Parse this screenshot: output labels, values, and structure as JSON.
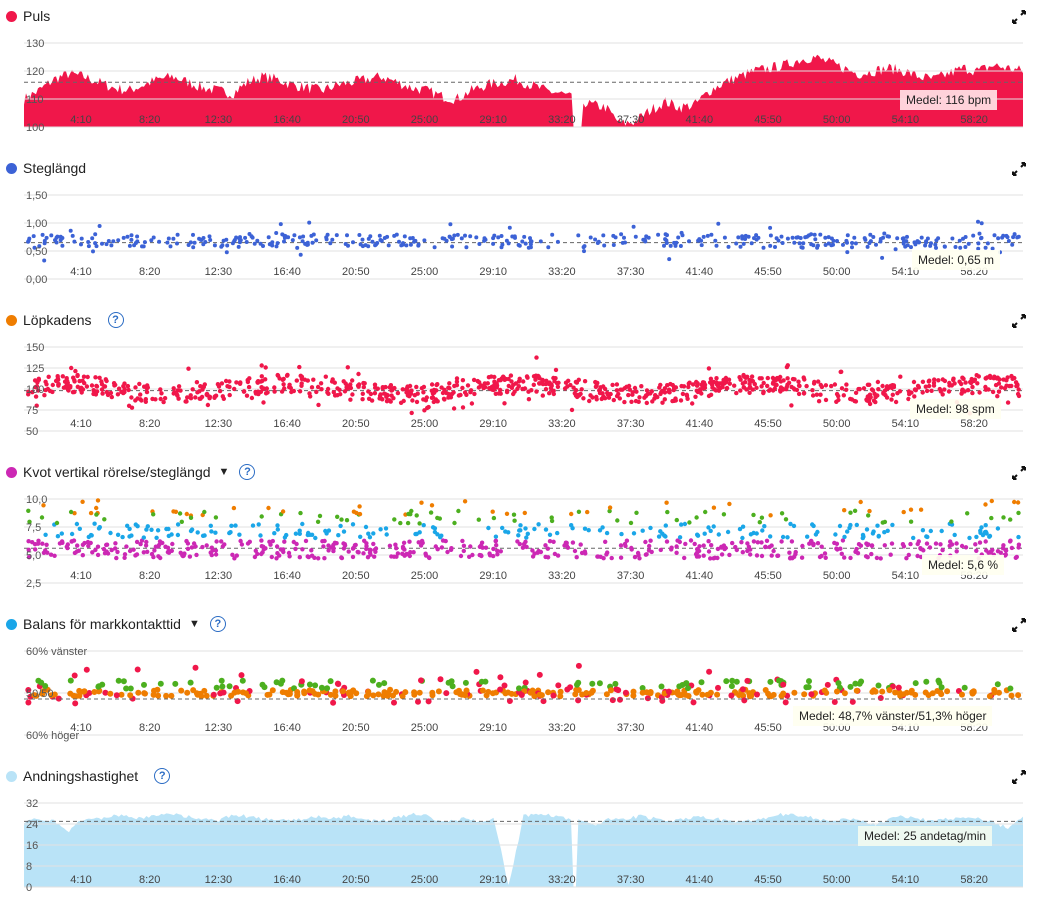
{
  "x_ticks": [
    "4:10",
    "8:20",
    "12:30",
    "16:40",
    "20:50",
    "25:00",
    "29:10",
    "33:20",
    "37:30",
    "41:40",
    "45:50",
    "50:00",
    "54:10",
    "58:20"
  ],
  "colors": {
    "puls": "#f0174a",
    "steg": "#3c62d6",
    "kadens_dot": "#f0174a",
    "kadens_icon": "#ef7d00",
    "kvot_pink": "#cc28b4",
    "kvot_blue": "#1aa6e8",
    "kvot_green": "#4caf1f",
    "kvot_orange": "#ef7d00",
    "kvot_icon": "#cc28b4",
    "balans_red": "#f0174a",
    "balans_orange": "#ef7d00",
    "balans_green": "#4caf1f",
    "balans_icon": "#1aa6e8",
    "andning": "#b9e3f7",
    "andning_icon": "#b9e3f7",
    "help": "#2b6cc4"
  },
  "panels": {
    "puls": {
      "title": "Puls",
      "avg_label": "Medel: 116 bpm",
      "y_ticks": [
        "130",
        "120",
        "110",
        "100"
      ]
    },
    "steg": {
      "title": "Steglängd",
      "avg_label": "Medel: 0,65 m",
      "y_ticks": [
        "1,50",
        "1,00",
        "0,50",
        "0,00"
      ]
    },
    "kadens": {
      "title": "Löpkadens",
      "avg_label": "Medel: 98 spm",
      "y_ticks": [
        "150",
        "125",
        "100",
        "75",
        "50"
      ]
    },
    "kvot": {
      "title": "Kvot vertikal rörelse/steglängd",
      "avg_label": "Medel: 5,6 %",
      "y_ticks": [
        "10,0",
        "7,5",
        "5,0",
        "2,5"
      ]
    },
    "balans": {
      "title": "Balans för markkontakttid",
      "avg_label": "Medel: 48,7% vänster/51,3% höger",
      "y_ticks": [
        "60% vänster",
        "50/50",
        "60% höger"
      ]
    },
    "andning": {
      "title": "Andningshastighet",
      "avg_label": "Medel: 25 andetag/min",
      "y_ticks": [
        "32",
        "24",
        "16",
        "8",
        "0"
      ]
    }
  },
  "chart_data": [
    {
      "type": "area",
      "title": "Puls",
      "ylim": [
        100,
        130
      ],
      "xlim_seconds": [
        0,
        3720
      ],
      "average": 116,
      "unit": "bpm",
      "series": [
        {
          "values": [
            110,
            113,
            117,
            119,
            118,
            116,
            114,
            113,
            115,
            117,
            118,
            116,
            114,
            113,
            112,
            116,
            118,
            117,
            115,
            114,
            113,
            115,
            116,
            117,
            118,
            116,
            114,
            113,
            111,
            110,
            113,
            115,
            116,
            117,
            115,
            113,
            112,
            110,
            108,
            107,
            101,
            102,
            106,
            109,
            107,
            108,
            113,
            116,
            118,
            120,
            121,
            122,
            124,
            125,
            123,
            121,
            119,
            120,
            121,
            120,
            118,
            117,
            119,
            121,
            120,
            122,
            121,
            120
          ]
        }
      ]
    },
    {
      "type": "scatter",
      "title": "Steglängd",
      "ylim": [
        0,
        1.5
      ],
      "average": 0.65,
      "unit": "m",
      "sample_count": 420
    },
    {
      "type": "scatter",
      "title": "Löpkadens",
      "ylim": [
        50,
        150
      ],
      "average": 98,
      "unit": "spm",
      "sample_count": 900
    },
    {
      "type": "scatter",
      "title": "Kvot vertikal rörelse/steglängd",
      "ylim": [
        2.5,
        10
      ],
      "average": 5.6,
      "unit": "%",
      "sample_count": 780
    },
    {
      "type": "scatter",
      "title": "Balans för markkontakttid",
      "average_left": 48.7,
      "average_right": 51.3,
      "unit": "%",
      "sample_count": 420
    },
    {
      "type": "area",
      "title": "Andningshastighet",
      "ylim": [
        0,
        32
      ],
      "average": 25,
      "unit": "andetag/min",
      "series": [
        {
          "values": [
            25,
            26,
            25,
            21,
            26,
            26,
            27,
            27,
            26,
            27,
            28,
            27,
            26,
            25,
            27,
            27,
            26,
            26,
            25,
            26,
            27,
            26,
            27,
            26,
            25,
            26,
            27,
            28,
            26,
            25,
            26,
            25,
            26,
            0,
            27,
            28,
            27,
            26,
            25,
            24,
            26,
            26,
            27,
            26,
            25,
            26,
            27,
            26,
            25,
            25,
            26,
            27,
            28,
            27,
            26,
            25,
            26,
            25,
            24,
            26,
            27,
            26,
            25,
            26,
            27,
            26,
            25,
            22,
            27
          ]
        }
      ]
    }
  ]
}
